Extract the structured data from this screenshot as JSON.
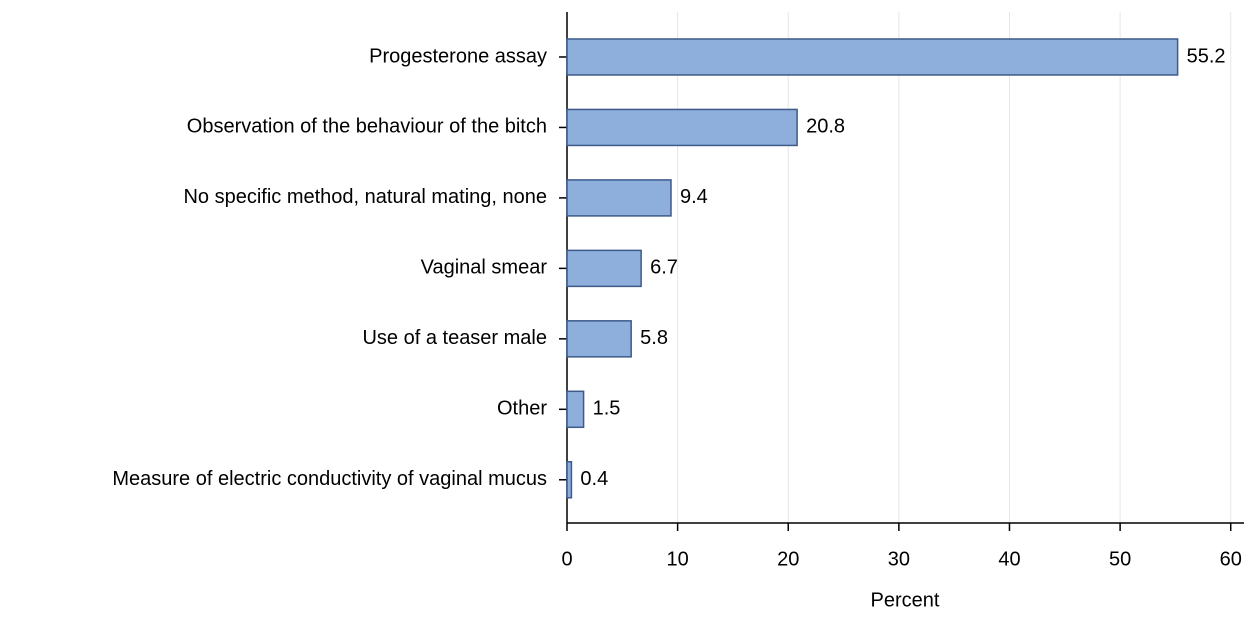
{
  "chart_data": {
    "type": "bar",
    "orientation": "horizontal",
    "categories": [
      "Progesterone assay",
      "Observation of the behaviour of the bitch",
      "No specific method, natural mating, none",
      "Vaginal smear",
      "Use of a teaser male",
      "Other",
      "Measure of electric conductivity of vaginal mucus"
    ],
    "values": [
      55.2,
      20.8,
      9.4,
      6.7,
      5.8,
      1.5,
      0.4
    ],
    "color": "#8eafdb",
    "x_label": "Percent",
    "xlim": [
      0,
      61.2
    ],
    "xticks": [
      0,
      10,
      20,
      30,
      40,
      50,
      60
    ],
    "grid": true
  }
}
